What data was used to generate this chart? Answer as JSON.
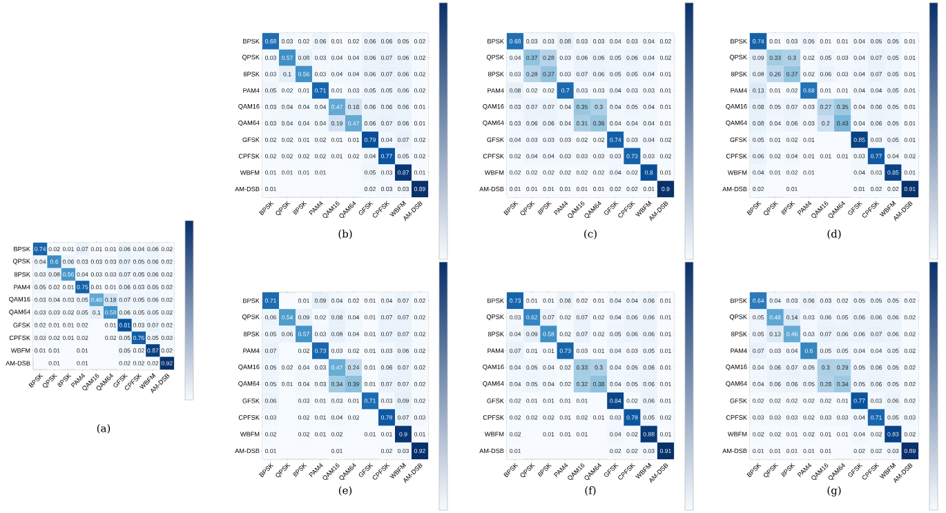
{
  "chart_data": [
    {
      "type": "heatmap",
      "title": "(a)",
      "data_labels": true,
      "categories": [
        "BPSK",
        "QPSK",
        "8PSK",
        "PAM4",
        "QAM16",
        "QAM64",
        "GFSK",
        "CPFSK",
        "WBFM",
        "AM-DSB"
      ],
      "y_categories": [
        "BPSK",
        "QPSK",
        "8PSK",
        "PAM4",
        "QAM16",
        "QAM64",
        "GFSK",
        "CPFSK",
        "WBFM",
        "AM-DSB"
      ],
      "cells": [
        [
          0.74,
          0.02,
          0.01,
          0.07,
          0.01,
          0.01,
          0.06,
          0.04,
          0.06,
          0.02
        ],
        [
          0.04,
          0.6,
          0.06,
          0.03,
          0.03,
          0.03,
          0.07,
          0.05,
          0.06,
          0.02
        ],
        [
          0.03,
          0.08,
          0.56,
          0.04,
          0.03,
          0.03,
          0.07,
          0.05,
          0.06,
          0.02
        ],
        [
          0.05,
          0.02,
          0.01,
          0.75,
          0.01,
          0.01,
          0.06,
          0.03,
          0.05,
          0.02
        ],
        [
          0.03,
          0.04,
          0.03,
          0.05,
          0.49,
          0.18,
          0.07,
          0.05,
          0.06,
          0.02
        ],
        [
          0.03,
          0.03,
          0.02,
          0.05,
          0.1,
          0.58,
          0.06,
          0.05,
          0.05,
          0.02
        ],
        [
          0.02,
          0.01,
          0.01,
          0.02,
          null,
          0.01,
          0.81,
          0.03,
          0.07,
          0.02
        ],
        [
          0.03,
          0.02,
          0.01,
          0.02,
          null,
          0.02,
          0.05,
          0.76,
          0.05,
          0.03
        ],
        [
          0.01,
          0.01,
          null,
          0.01,
          null,
          null,
          0.05,
          0.02,
          0.87,
          0.02
        ],
        [
          null,
          0.01,
          null,
          0.01,
          null,
          null,
          0.02,
          0.02,
          0.02,
          0.92
        ]
      ]
    },
    {
      "type": "heatmap",
      "title": "(b)",
      "data_labels": true,
      "categories": [
        "BPSK",
        "QPSK",
        "8PSK",
        "PAM4",
        "QAM16",
        "QAM64",
        "GFSK",
        "CPFSK",
        "WBFM",
        "AM-DSB"
      ],
      "y_categories": [
        "BPSK",
        "QPSK",
        "8PSK",
        "PAM4",
        "QAM16",
        "QAM64",
        "GFSK",
        "CPFSK",
        "WBFM",
        "AM-DSB"
      ],
      "cells": [
        [
          0.68,
          0.03,
          0.02,
          0.06,
          0.01,
          0.02,
          0.06,
          0.06,
          0.05,
          0.02
        ],
        [
          0.03,
          0.57,
          0.08,
          0.03,
          0.04,
          0.04,
          0.06,
          0.07,
          0.06,
          0.02
        ],
        [
          0.03,
          0.1,
          0.56,
          0.03,
          0.04,
          0.04,
          0.06,
          0.07,
          0.06,
          0.02
        ],
        [
          0.05,
          0.02,
          0.01,
          0.71,
          0.01,
          0.03,
          0.05,
          0.05,
          0.06,
          0.02
        ],
        [
          0.03,
          0.04,
          0.04,
          0.04,
          0.47,
          0.18,
          0.06,
          0.06,
          0.06,
          0.01
        ],
        [
          0.03,
          0.04,
          0.04,
          0.04,
          0.19,
          0.47,
          0.06,
          0.07,
          0.06,
          0.01
        ],
        [
          0.02,
          0.02,
          0.01,
          0.02,
          0.01,
          0.01,
          0.79,
          0.04,
          0.07,
          0.02
        ],
        [
          0.02,
          0.02,
          0.02,
          0.02,
          0.01,
          0.02,
          0.04,
          0.77,
          0.05,
          0.02
        ],
        [
          0.01,
          0.01,
          0.01,
          0.01,
          null,
          null,
          0.05,
          0.03,
          0.87,
          0.01
        ],
        [
          0.01,
          null,
          null,
          null,
          null,
          null,
          0.02,
          0.03,
          0.03,
          0.89
        ]
      ]
    },
    {
      "type": "heatmap",
      "title": "(c)",
      "data_labels": true,
      "categories": [
        "BPSK",
        "QPSK",
        "8PSK",
        "PAM4",
        "QAM16",
        "QAM64",
        "GFSK",
        "CPFSK",
        "WBFM",
        "AM-DSB"
      ],
      "y_categories": [
        "BPSK",
        "QPSK",
        "8PSK",
        "PAM4",
        "QAM16",
        "QAM64",
        "GFSK",
        "CPFSK",
        "WBFM",
        "AM-DSB"
      ],
      "cells": [
        [
          0.68,
          0.03,
          0.03,
          0.08,
          0.03,
          0.03,
          0.04,
          0.03,
          0.04,
          0.02
        ],
        [
          0.04,
          0.37,
          0.28,
          0.03,
          0.06,
          0.06,
          0.05,
          0.06,
          0.04,
          0.02
        ],
        [
          0.03,
          0.28,
          0.37,
          0.03,
          0.07,
          0.06,
          0.05,
          0.05,
          0.04,
          0.01
        ],
        [
          0.08,
          0.02,
          0.02,
          0.7,
          0.03,
          0.03,
          0.04,
          0.03,
          0.03,
          0.01
        ],
        [
          0.03,
          0.07,
          0.07,
          0.04,
          0.35,
          0.3,
          0.04,
          0.05,
          0.04,
          0.01
        ],
        [
          0.03,
          0.06,
          0.06,
          0.04,
          0.31,
          0.36,
          0.04,
          0.04,
          0.04,
          0.01
        ],
        [
          0.04,
          0.03,
          0.03,
          0.03,
          0.02,
          0.02,
          0.74,
          0.03,
          0.04,
          0.02
        ],
        [
          0.02,
          0.04,
          0.04,
          0.03,
          0.03,
          0.03,
          0.03,
          0.73,
          0.03,
          0.02
        ],
        [
          0.02,
          0.02,
          0.02,
          0.02,
          0.02,
          0.02,
          0.04,
          0.02,
          0.8,
          0.01
        ],
        [
          0.01,
          0.01,
          0.01,
          0.01,
          0.01,
          0.01,
          0.02,
          0.02,
          0.01,
          0.9
        ]
      ]
    },
    {
      "type": "heatmap",
      "title": "(d)",
      "data_labels": true,
      "categories": [
        "BPSK",
        "QPSK",
        "8PSK",
        "PAM4",
        "QAM16",
        "QAM64",
        "GFSK",
        "CPFSK",
        "WBFM",
        "AM-DSB"
      ],
      "y_categories": [
        "BPSK",
        "QPSK",
        "8PSK",
        "PAM4",
        "QAM16",
        "QAM64",
        "GFSK",
        "CPFSK",
        "WBFM",
        "AM-DSB"
      ],
      "cells": [
        [
          0.74,
          0.01,
          0.03,
          0.05,
          0.01,
          0.01,
          0.04,
          0.05,
          0.05,
          0.01
        ],
        [
          0.09,
          0.33,
          0.3,
          0.02,
          0.05,
          0.03,
          0.04,
          0.07,
          0.05,
          0.01
        ],
        [
          0.08,
          0.26,
          0.37,
          0.02,
          0.06,
          0.03,
          0.04,
          0.07,
          0.05,
          0.01
        ],
        [
          0.13,
          0.01,
          0.02,
          0.68,
          0.01,
          0.01,
          0.04,
          0.04,
          0.05,
          0.01
        ],
        [
          0.08,
          0.05,
          0.07,
          0.03,
          0.27,
          0.35,
          0.04,
          0.06,
          0.05,
          0.01
        ],
        [
          0.08,
          0.04,
          0.06,
          0.03,
          0.2,
          0.43,
          0.04,
          0.06,
          0.05,
          0.01
        ],
        [
          0.05,
          0.01,
          0.02,
          0.01,
          null,
          null,
          0.85,
          0.03,
          0.05,
          0.01
        ],
        [
          0.06,
          0.02,
          0.04,
          0.01,
          0.01,
          0.01,
          0.03,
          0.77,
          0.04,
          0.02
        ],
        [
          0.04,
          0.01,
          0.02,
          0.01,
          null,
          null,
          0.04,
          0.03,
          0.85,
          0.01
        ],
        [
          0.02,
          null,
          0.01,
          null,
          null,
          null,
          0.01,
          0.02,
          0.02,
          0.91
        ]
      ]
    },
    {
      "type": "heatmap",
      "title": "(e)",
      "data_labels": true,
      "categories": [
        "BPSK",
        "QPSK",
        "8PSK",
        "PAM4",
        "QAM16",
        "QAM64",
        "GFSK",
        "CPFSK",
        "WBFM",
        "AM-DSB"
      ],
      "y_categories": [
        "BPSK",
        "QPSK",
        "8PSK",
        "PAM4",
        "QAM16",
        "QAM64",
        "GFSK",
        "CPFSK",
        "WBFM",
        "AM-DSB"
      ],
      "cells": [
        [
          0.71,
          null,
          0.01,
          0.09,
          0.04,
          0.02,
          0.01,
          0.04,
          0.07,
          0.02
        ],
        [
          0.06,
          0.54,
          0.09,
          0.02,
          0.08,
          0.04,
          0.01,
          0.07,
          0.07,
          0.02
        ],
        [
          0.05,
          0.06,
          0.57,
          0.03,
          0.08,
          0.04,
          0.01,
          0.07,
          0.07,
          0.02
        ],
        [
          0.07,
          null,
          0.02,
          0.73,
          0.03,
          0.02,
          0.01,
          0.03,
          0.06,
          0.02
        ],
        [
          0.05,
          0.02,
          0.04,
          0.03,
          0.47,
          0.24,
          0.01,
          0.06,
          0.07,
          0.02
        ],
        [
          0.05,
          0.01,
          0.04,
          0.03,
          0.34,
          0.39,
          0.01,
          0.07,
          0.07,
          0.02
        ],
        [
          0.06,
          null,
          0.03,
          0.01,
          0.03,
          0.01,
          0.71,
          0.03,
          0.09,
          0.02
        ],
        [
          0.03,
          null,
          0.02,
          0.01,
          0.04,
          0.02,
          null,
          0.78,
          0.07,
          0.03
        ],
        [
          0.02,
          null,
          0.02,
          0.01,
          0.02,
          null,
          0.01,
          0.01,
          0.9,
          0.01
        ],
        [
          0.01,
          null,
          null,
          null,
          0.01,
          null,
          null,
          0.02,
          0.03,
          0.92
        ]
      ]
    },
    {
      "type": "heatmap",
      "title": "(f)",
      "data_labels": true,
      "categories": [
        "BPSK",
        "QPSK",
        "8PSK",
        "PAM4",
        "QAM16",
        "QAM64",
        "GFSK",
        "CPFSK",
        "WBFM",
        "AM-DSB"
      ],
      "y_categories": [
        "BPSK",
        "QPSK",
        "8PSK",
        "PAM4",
        "QAM16",
        "QAM64",
        "GFSK",
        "CPFSK",
        "WBFM",
        "AM-DSB"
      ],
      "cells": [
        [
          0.73,
          0.01,
          0.01,
          0.06,
          0.02,
          0.01,
          0.04,
          0.04,
          0.06,
          0.01
        ],
        [
          0.03,
          0.62,
          0.07,
          0.02,
          0.07,
          0.02,
          0.04,
          0.06,
          0.06,
          0.01
        ],
        [
          0.04,
          0.09,
          0.58,
          0.02,
          0.07,
          0.02,
          0.05,
          0.06,
          0.06,
          0.01
        ],
        [
          0.07,
          0.01,
          0.01,
          0.73,
          0.03,
          0.01,
          0.04,
          0.03,
          0.05,
          0.01
        ],
        [
          0.04,
          0.05,
          0.04,
          0.02,
          0.33,
          0.3,
          0.04,
          0.05,
          0.06,
          0.01
        ],
        [
          0.04,
          0.05,
          0.04,
          0.02,
          0.32,
          0.38,
          0.04,
          0.05,
          0.06,
          0.01
        ],
        [
          0.02,
          0.01,
          0.01,
          0.01,
          0.01,
          null,
          0.84,
          0.02,
          0.06,
          0.01
        ],
        [
          0.02,
          0.02,
          0.02,
          0.01,
          0.02,
          0.01,
          0.03,
          0.78,
          0.05,
          0.02
        ],
        [
          0.02,
          null,
          0.01,
          0.01,
          0.01,
          null,
          0.04,
          0.02,
          0.88,
          0.01
        ],
        [
          0.01,
          null,
          null,
          null,
          null,
          null,
          0.02,
          0.02,
          0.03,
          0.91
        ]
      ]
    },
    {
      "type": "heatmap",
      "title": "(g)",
      "data_labels": true,
      "categories": [
        "BPSK",
        "QPSK",
        "8PSK",
        "PAM4",
        "QAM16",
        "QAM64",
        "GFSK",
        "CPFSK",
        "WBFM",
        "AM-DSB"
      ],
      "y_categories": [
        "BPSK",
        "QPSK",
        "8PSK",
        "PAM4",
        "QAM16",
        "QAM64",
        "GFSK",
        "CPFSK",
        "WBFM",
        "AM-DSB"
      ],
      "cells": [
        [
          0.64,
          0.04,
          0.03,
          0.06,
          0.03,
          0.02,
          0.05,
          0.05,
          0.05,
          0.02
        ],
        [
          0.05,
          0.48,
          0.14,
          0.03,
          0.06,
          0.05,
          0.06,
          0.06,
          0.06,
          0.02
        ],
        [
          0.05,
          0.13,
          0.46,
          0.03,
          0.07,
          0.06,
          0.06,
          0.07,
          0.06,
          0.02
        ],
        [
          0.07,
          0.03,
          0.04,
          0.6,
          0.05,
          0.05,
          0.04,
          0.04,
          0.05,
          0.02
        ],
        [
          0.04,
          0.06,
          0.07,
          0.05,
          0.3,
          0.29,
          0.05,
          0.06,
          0.05,
          0.02
        ],
        [
          0.04,
          0.06,
          0.06,
          0.05,
          0.28,
          0.34,
          0.05,
          0.06,
          0.05,
          0.02
        ],
        [
          0.02,
          0.02,
          0.02,
          0.02,
          0.02,
          0.01,
          0.77,
          0.03,
          0.06,
          0.02
        ],
        [
          0.03,
          0.03,
          0.03,
          0.02,
          0.03,
          0.03,
          0.04,
          0.71,
          0.05,
          0.03
        ],
        [
          0.02,
          0.02,
          0.01,
          0.02,
          0.01,
          0.01,
          0.04,
          0.02,
          0.83,
          0.02
        ],
        [
          0.01,
          0.01,
          0.01,
          0.01,
          0.01,
          null,
          0.02,
          0.02,
          0.03,
          0.89
        ]
      ]
    }
  ]
}
